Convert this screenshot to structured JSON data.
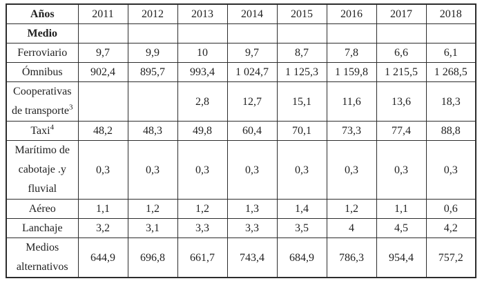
{
  "table": {
    "corner_top": "Años",
    "corner_bottom": "Medio",
    "years": [
      "2011",
      "2012",
      "2013",
      "2014",
      "2015",
      "2016",
      "2017",
      "2018"
    ],
    "rows": [
      {
        "label_lines": [
          "Ferroviario"
        ],
        "sup": "",
        "values": [
          "9,7",
          "9,9",
          "10",
          "9,7",
          "8,7",
          "7,8",
          "6,6",
          "6,1"
        ]
      },
      {
        "label_lines": [
          "Ómnibus"
        ],
        "sup": "",
        "values": [
          "902,4",
          "895,7",
          "993,4",
          "1 024,7",
          "1 125,3",
          "1 159,8",
          "1 215,5",
          "1 268,5"
        ]
      },
      {
        "label_lines": [
          "Cooperativas",
          "de transporte"
        ],
        "sup": "3",
        "values": [
          "",
          "",
          "2,8",
          "12,7",
          "15,1",
          "11,6",
          "13,6",
          "18,3"
        ]
      },
      {
        "label_lines": [
          "Taxi"
        ],
        "sup": "4",
        "values": [
          "48,2",
          "48,3",
          "49,8",
          "60,4",
          "70,1",
          "73,3",
          "77,4",
          "88,8"
        ]
      },
      {
        "label_lines": [
          "Marítimo de",
          "cabotaje .y",
          "fluvial"
        ],
        "sup": "",
        "values": [
          "0,3",
          "0,3",
          "0,3",
          "0,3",
          "0,3",
          "0,3",
          "0,3",
          "0,3"
        ]
      },
      {
        "label_lines": [
          "Aéreo"
        ],
        "sup": "",
        "values": [
          "1,1",
          "1,2",
          "1,2",
          "1,3",
          "1,4",
          "1,2",
          "1,1",
          "0,6"
        ]
      },
      {
        "label_lines": [
          "Lanchaje"
        ],
        "sup": "",
        "values": [
          "3,2",
          "3,1",
          "3,3",
          "3,3",
          "3,5",
          "4",
          "4,5",
          "4,2"
        ]
      },
      {
        "label_lines": [
          "Medios",
          "alternativos"
        ],
        "sup": "",
        "values": [
          "644,9",
          "696,8",
          "661,7",
          "743,4",
          "684,9",
          "786,3",
          "954,4",
          "757,2"
        ]
      }
    ],
    "colors": {
      "background": "#ffffff",
      "border": "#2b2b2b",
      "text": "#1f1f1f"
    }
  }
}
